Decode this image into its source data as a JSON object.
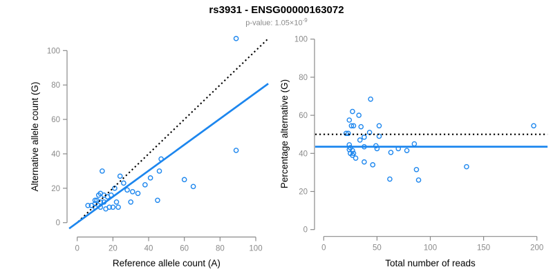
{
  "header": {
    "title": "rs3931 - ENSG00000163072",
    "subtitle_text": "p-value: 1.05×10",
    "subtitle_exponent": "-9"
  },
  "colors": {
    "point": "#1C86EE",
    "fit_line": "#1C86EE",
    "identity_line": "#000000",
    "axis": "#8A8A8A",
    "tick_label": "#8A8A8A",
    "axis_title": "#000000",
    "subtitle": "#8A8A8A"
  },
  "chart_data": [
    {
      "id": "allele-counts",
      "type": "scatter",
      "xlabel": "Reference allele count (A)",
      "ylabel": "Alternative allele count (G)",
      "xlim": [
        0,
        100
      ],
      "ylim": [
        0,
        100
      ],
      "xticks": [
        0,
        20,
        40,
        60,
        80,
        100
      ],
      "yticks": [
        0,
        20,
        40,
        60,
        80,
        100
      ],
      "grid": false,
      "legend": "none",
      "points": [
        [
          89,
          107
        ],
        [
          89,
          42
        ],
        [
          14,
          30
        ],
        [
          24,
          27
        ],
        [
          26,
          23
        ],
        [
          21,
          20
        ],
        [
          47,
          37
        ],
        [
          46,
          30
        ],
        [
          41,
          26
        ],
        [
          38,
          22
        ],
        [
          60,
          25
        ],
        [
          65,
          21
        ],
        [
          28,
          19
        ],
        [
          31,
          18
        ],
        [
          34,
          17
        ],
        [
          45,
          13
        ],
        [
          30,
          12
        ],
        [
          22,
          12
        ],
        [
          13,
          17
        ],
        [
          12,
          16
        ],
        [
          15,
          16
        ],
        [
          17,
          15
        ],
        [
          19,
          16
        ],
        [
          11,
          13
        ],
        [
          10,
          13
        ],
        [
          13,
          12
        ],
        [
          15,
          12
        ],
        [
          10,
          11
        ],
        [
          6,
          10
        ],
        [
          8,
          10
        ],
        [
          10,
          9
        ],
        [
          13,
          9
        ],
        [
          16,
          8
        ],
        [
          18,
          9
        ],
        [
          20,
          9
        ],
        [
          23,
          9
        ]
      ],
      "lines": [
        {
          "name": "identity-line",
          "slope": 1,
          "intercept": 0,
          "style": "dotted",
          "color_key": "identity_line",
          "x_range": [
            0.5,
            106.5
          ]
        },
        {
          "name": "fit-line",
          "slope": 0.755,
          "intercept": 0,
          "style": "solid",
          "color_key": "fit_line",
          "x_range": [
            -4.5,
            107
          ]
        }
      ]
    },
    {
      "id": "percentage-by-depth",
      "type": "scatter",
      "xlabel": "Total number of reads",
      "ylabel": "Percentage alternative (G)",
      "xlim": [
        0,
        200
      ],
      "ylim": [
        0,
        100
      ],
      "xticks": [
        0,
        50,
        100,
        150,
        200
      ],
      "yticks": [
        0,
        20,
        40,
        60,
        80,
        100
      ],
      "grid": false,
      "legend": "none",
      "points": [
        [
          21,
          50.5
        ],
        [
          23,
          50.5
        ],
        [
          24,
          57.5
        ],
        [
          24,
          44.5
        ],
        [
          24,
          42
        ],
        [
          25,
          40
        ],
        [
          25,
          43
        ],
        [
          26,
          54.5
        ],
        [
          27,
          62
        ],
        [
          27,
          41.5
        ],
        [
          27,
          39
        ],
        [
          28,
          54.5
        ],
        [
          28,
          40
        ],
        [
          30,
          37.5
        ],
        [
          33,
          60
        ],
        [
          34,
          47
        ],
        [
          35,
          54
        ],
        [
          38,
          48.5
        ],
        [
          38,
          43.5
        ],
        [
          38,
          35.5
        ],
        [
          43,
          51
        ],
        [
          44,
          68.5
        ],
        [
          46,
          34
        ],
        [
          49,
          44
        ],
        [
          50,
          42.5
        ],
        [
          52,
          54.5
        ],
        [
          52,
          49
        ],
        [
          62,
          26.5
        ],
        [
          63,
          40.5
        ],
        [
          70,
          42.5
        ],
        [
          78,
          41.5
        ],
        [
          85,
          45
        ],
        [
          87,
          31.5
        ],
        [
          89,
          26
        ],
        [
          134,
          33
        ],
        [
          197,
          54.5
        ]
      ],
      "lines": [
        {
          "name": "expected-line",
          "y": 50,
          "style": "dotted",
          "color_key": "identity_line",
          "x_range": [
            -8,
            210
          ]
        },
        {
          "name": "fit-line",
          "y": 43.5,
          "style": "solid",
          "color_key": "fit_line",
          "x_range": [
            -8,
            210
          ]
        }
      ]
    }
  ]
}
